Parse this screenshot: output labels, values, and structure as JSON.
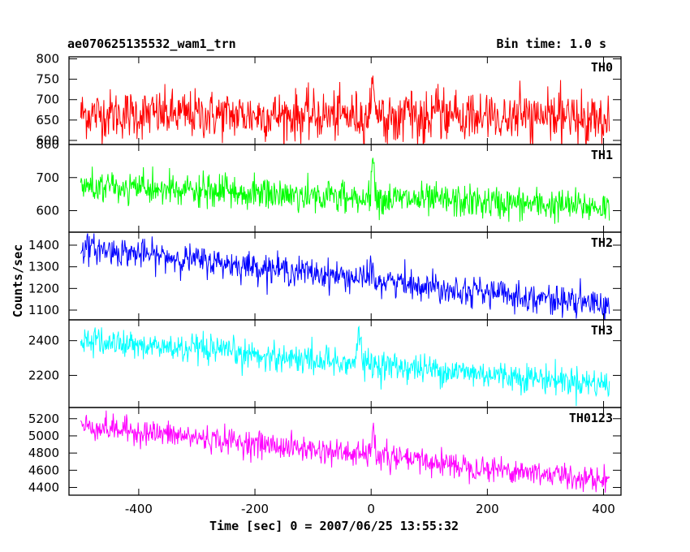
{
  "header": {
    "title": "ae070625135532_wam1_trn",
    "bin_time": "Bin time: 1.0 s"
  },
  "chart_data": {
    "type": "line",
    "title": "ae070625135532_wam1_trn",
    "subtitle": "Bin time: 1.0 s",
    "xlabel": "Time [sec] 0 = 2007/06/25 13:55:32",
    "ylabel": "Counts/sec",
    "xlim": [
      -520,
      430
    ],
    "x_ticks": [
      -400,
      -200,
      0,
      200,
      400
    ],
    "x_range_data": [
      -500,
      410
    ],
    "bin": 1.0,
    "grid": false,
    "panels": [
      {
        "name": "TH0",
        "color": "#ff0000",
        "ylim": [
          590,
          805
        ],
        "y_ticks": [
          600,
          650,
          700,
          750,
          800
        ],
        "trend": [
          [
            -500,
            665
          ],
          [
            410,
            655
          ]
        ],
        "noise_sd": 30,
        "peak": {
          "x": 3,
          "value": 800
        }
      },
      {
        "name": "TH1",
        "color": "#00ff00",
        "ylim": [
          535,
          800
        ],
        "y_ticks": [
          600,
          700,
          800
        ],
        "trend": [
          [
            -500,
            672
          ],
          [
            410,
            610
          ]
        ],
        "noise_sd": 25,
        "peak": {
          "x": 3,
          "value": 795
        }
      },
      {
        "name": "TH2",
        "color": "#0000ff",
        "ylim": [
          1055,
          1460
        ],
        "y_ticks": [
          1100,
          1200,
          1300,
          1400
        ],
        "trend": [
          [
            -500,
            1390
          ],
          [
            410,
            1120
          ]
        ],
        "noise_sd": 33,
        "peak": {
          "x": 0,
          "value": 1330
        }
      },
      {
        "name": "TH3",
        "color": "#00ffff",
        "ylim": [
          2015,
          2520
        ],
        "y_ticks": [
          2200,
          2400
        ],
        "trend": [
          [
            -500,
            2400
          ],
          [
            410,
            2150
          ]
        ],
        "noise_sd": 42,
        "peak": {
          "x": -20,
          "value": 2520
        }
      },
      {
        "name": "TH0123",
        "color": "#ff00ff",
        "ylim": [
          4310,
          5330
        ],
        "y_ticks": [
          4400,
          4600,
          4800,
          5000,
          5200
        ],
        "trend": [
          [
            -500,
            5120
          ],
          [
            410,
            4480
          ]
        ],
        "noise_sd": 75,
        "peak": {
          "x": 3,
          "value": 5140
        }
      }
    ]
  }
}
